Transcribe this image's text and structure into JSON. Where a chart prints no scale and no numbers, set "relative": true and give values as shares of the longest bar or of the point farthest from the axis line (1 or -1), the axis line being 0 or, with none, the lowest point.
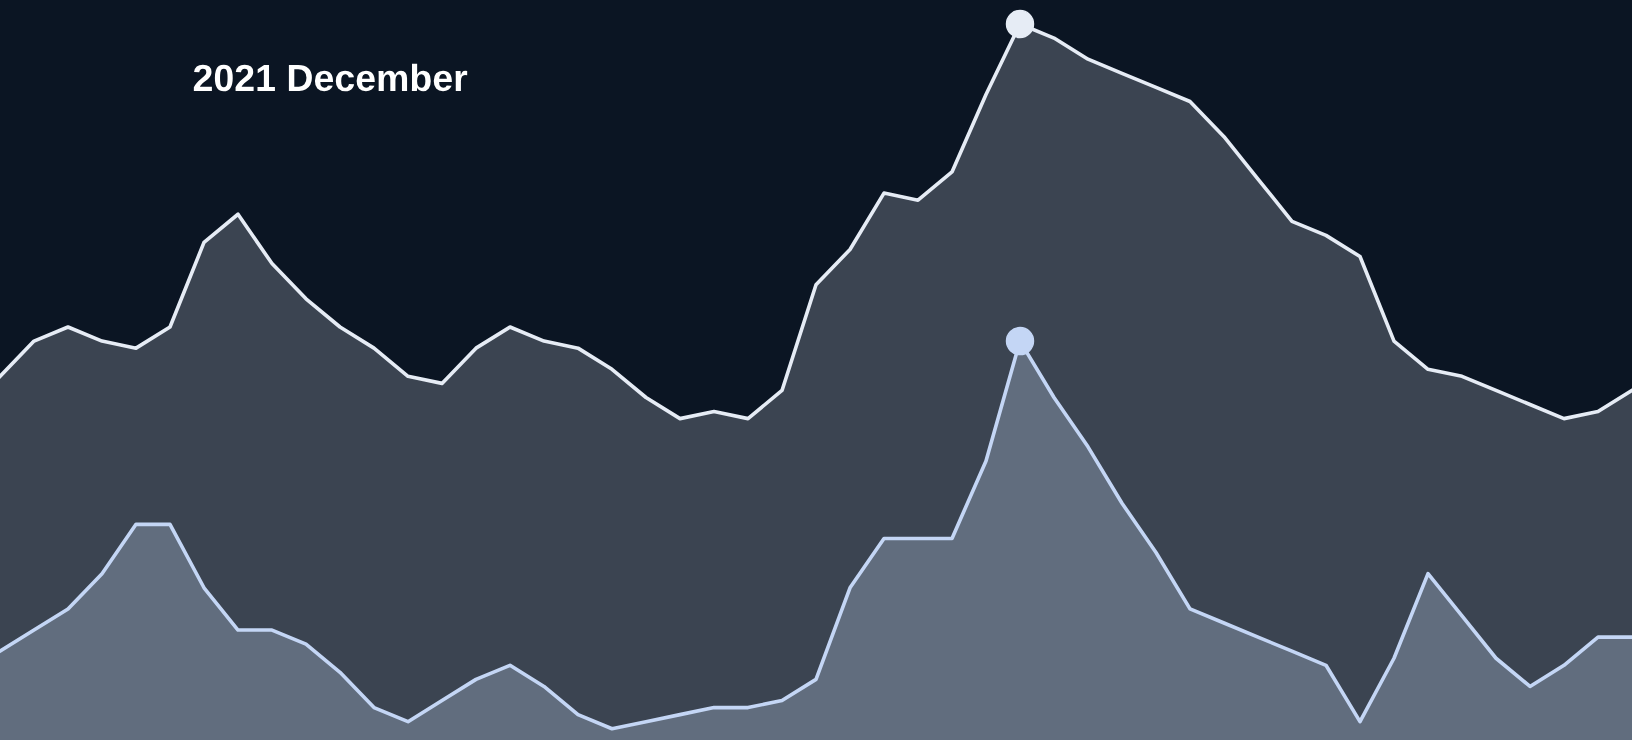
{
  "chart_data": {
    "type": "area",
    "title": "2021 December",
    "relative": true,
    "categories": [
      null,
      null,
      null,
      null,
      null,
      null,
      null,
      null,
      null,
      null,
      null,
      null,
      null,
      null,
      null,
      null,
      null,
      null,
      null,
      null,
      null,
      null,
      null,
      null,
      null,
      null,
      null,
      null,
      null,
      null,
      null,
      null,
      null,
      null,
      null,
      null,
      null,
      null,
      null,
      null,
      null,
      null,
      null,
      null,
      null,
      null,
      null,
      null,
      null
    ],
    "series": [
      {
        "color": "#e6ecf5",
        "values": [
          0.5,
          0.55,
          0.57,
          0.55,
          0.54,
          0.57,
          0.69,
          0.73,
          0.66,
          0.61,
          0.57,
          0.54,
          0.5,
          0.49,
          0.54,
          0.57,
          0.55,
          0.54,
          0.51,
          0.47,
          0.44,
          0.45,
          0.44,
          0.48,
          0.63,
          0.68,
          0.76,
          0.75,
          0.79,
          0.9,
          1.0,
          0.98,
          0.95,
          0.93,
          0.91,
          0.89,
          0.84,
          0.78,
          0.72,
          0.7,
          0.67,
          0.55,
          0.51,
          0.5,
          0.48,
          0.46,
          0.44,
          0.45,
          0.48
        ]
      },
      {
        "color": "#c4d6f5",
        "values": [
          0.11,
          0.14,
          0.17,
          0.22,
          0.29,
          0.29,
          0.2,
          0.14,
          0.14,
          0.12,
          0.08,
          0.03,
          0.01,
          0.04,
          0.07,
          0.09,
          0.06,
          0.02,
          0.0,
          0.01,
          0.02,
          0.03,
          0.03,
          0.04,
          0.07,
          0.2,
          0.27,
          0.27,
          0.27,
          0.38,
          0.55,
          0.47,
          0.4,
          0.32,
          0.25,
          0.17,
          0.15,
          0.13,
          0.11,
          0.09,
          0.01,
          0.1,
          0.22,
          0.16,
          0.1,
          0.06,
          0.09,
          0.13,
          0.13
        ]
      }
    ]
  }
}
